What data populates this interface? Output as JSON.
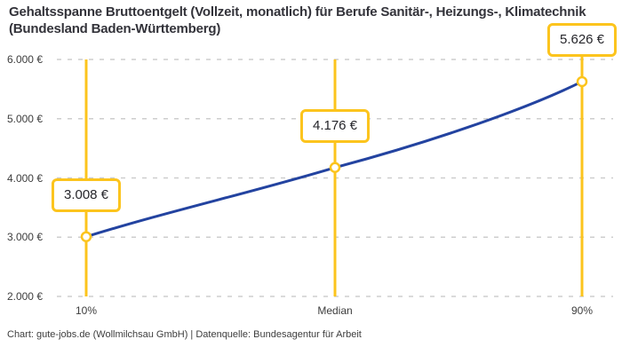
{
  "chart_data": {
    "type": "line",
    "title": "Gehaltsspanne Bruttoentgelt (Vollzeit, monatlich) für Berufe Sanitär-, Heizungs-, Klimatechnik (Bundesland Baden-Württemberg)",
    "categories": [
      "10%",
      "Median",
      "90%"
    ],
    "values": [
      3008,
      4176,
      5626
    ],
    "value_labels": [
      "3.008 €",
      "4.176 €",
      "5.626 €"
    ],
    "ylim": [
      2000,
      6000
    ],
    "yticks": [
      2000,
      3000,
      4000,
      5000,
      6000
    ],
    "ytick_labels": [
      "2.000 €",
      "3.000 €",
      "4.000 €",
      "5.000 €",
      "6.000 €"
    ],
    "xlabel": "",
    "ylabel": "",
    "grid": "horizontal-dashed",
    "legend": "none",
    "marker": "open-circle",
    "line_color": "#2343A0",
    "accent_color": "#FCC41D",
    "grid_color": "#CDCDCD"
  },
  "attribution": "Chart: gute-jobs.de (Wollmilchsau GmbH) | Datenquelle: Bundesagentur für Arbeit"
}
